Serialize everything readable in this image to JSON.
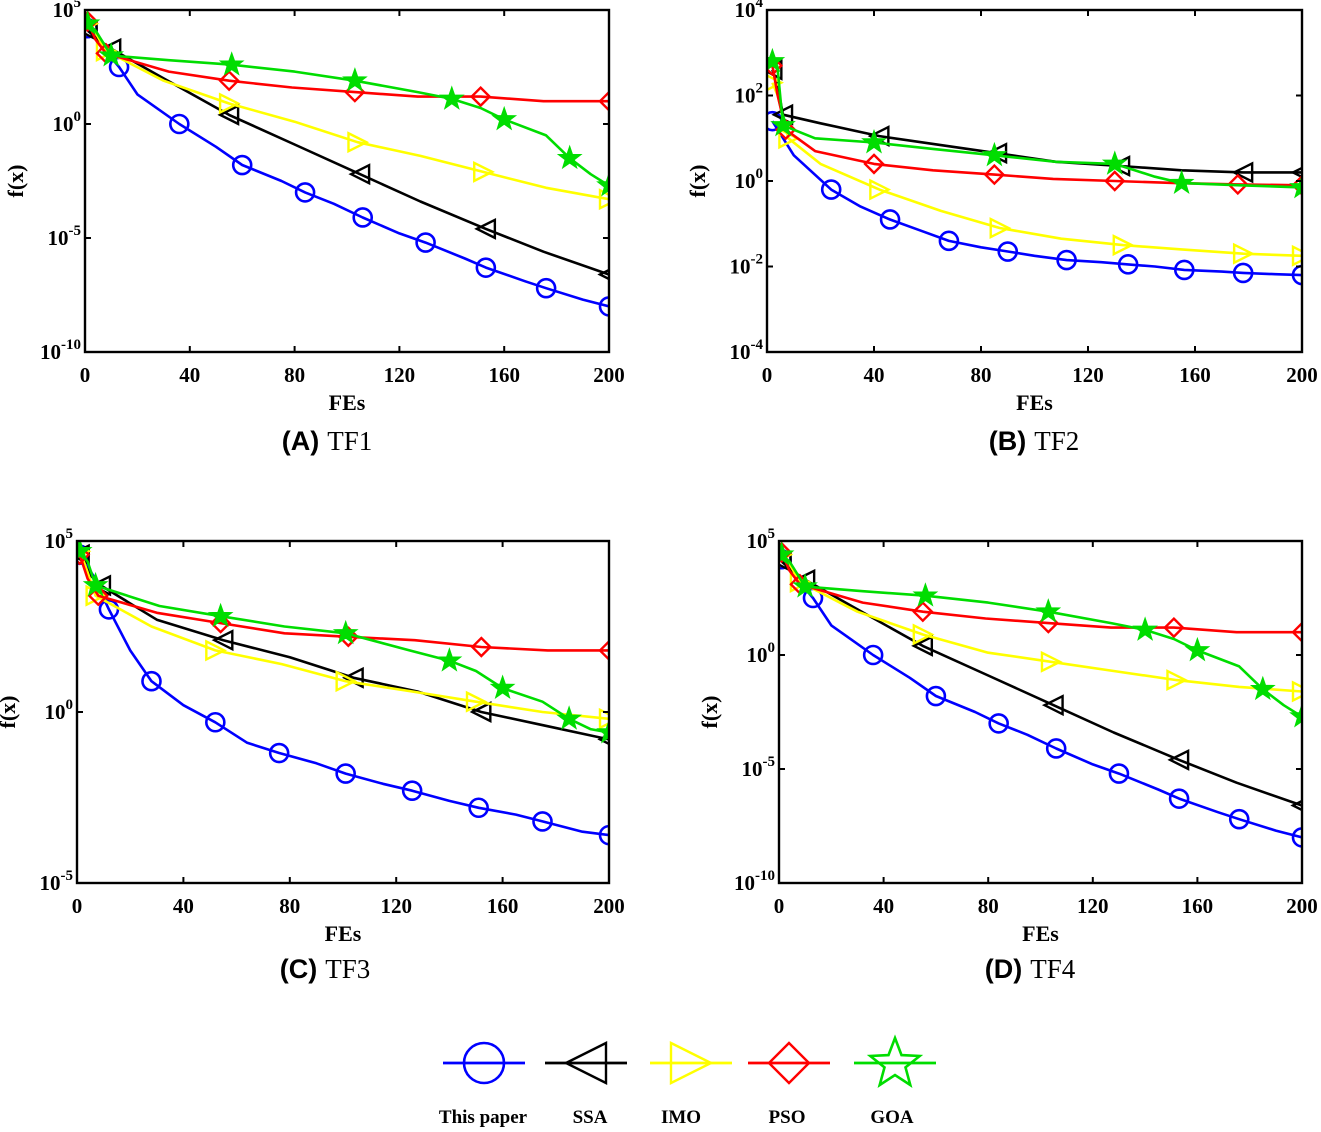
{
  "legend": {
    "entries": [
      {
        "label": "This paper",
        "color": "#0000ff",
        "marker": "circle-icon"
      },
      {
        "label": "SSA",
        "color": "#000000",
        "marker": "triangle-left-icon"
      },
      {
        "label": "IMO",
        "color": "#ffff00",
        "marker": "triangle-right-icon"
      },
      {
        "label": "PSO",
        "color": "#ff0000",
        "marker": "diamond-icon"
      },
      {
        "label": "GOA",
        "color": "#00dd00",
        "marker": "star-icon"
      }
    ]
  },
  "chart_data": [
    {
      "type": "line",
      "panel": "A",
      "title": "TF1",
      "xlabel": "FEs",
      "ylabel": "f(x)",
      "xlim": [
        0,
        200
      ],
      "ylim": [
        -10,
        5
      ],
      "yscale": "log10",
      "xticks": [
        "0",
        "40",
        "80",
        "120",
        "160",
        "200"
      ],
      "yticks": [
        {
          "base": "10",
          "exp": "5"
        },
        {
          "base": "10",
          "exp": "0"
        },
        {
          "base": "10",
          "exp": "-5"
        },
        {
          "base": "10",
          "exp": "-10"
        }
      ],
      "series": [
        {
          "name": "This paper",
          "x": [
            1,
            5,
            13,
            20,
            36,
            50,
            60,
            75,
            84,
            95,
            106,
            120,
            130,
            145,
            153,
            168,
            176,
            190,
            200
          ],
          "log10_y": [
            4.2,
            3.6,
            2.5,
            1.3,
            0.0,
            -1.0,
            -1.8,
            -2.5,
            -3.0,
            -3.5,
            -4.1,
            -4.8,
            -5.2,
            -5.9,
            -6.3,
            -6.9,
            -7.2,
            -7.7,
            -8.0
          ]
        },
        {
          "name": "SSA",
          "x": [
            1,
            5,
            10,
            30,
            55,
            80,
            105,
            128,
            153,
            175,
            200
          ],
          "log10_y": [
            4.1,
            3.7,
            3.3,
            2.0,
            0.4,
            -0.9,
            -2.2,
            -3.4,
            -4.6,
            -5.6,
            -6.6
          ]
        },
        {
          "name": "IMO",
          "x": [
            1,
            3,
            8,
            30,
            55,
            80,
            104,
            128,
            152,
            176,
            200
          ],
          "log10_y": [
            4.4,
            4.2,
            3.2,
            1.9,
            0.9,
            0.1,
            -0.8,
            -1.4,
            -2.1,
            -2.8,
            -3.3
          ]
        },
        {
          "name": "PSO",
          "x": [
            1,
            4,
            8,
            32,
            55,
            79,
            103,
            127,
            151,
            175,
            200
          ],
          "log10_y": [
            4.5,
            3.7,
            3.1,
            2.3,
            1.9,
            1.6,
            1.4,
            1.2,
            1.2,
            1.0,
            1.0
          ]
        },
        {
          "name": "GOA",
          "x": [
            1,
            4,
            10,
            32,
            56,
            80,
            103,
            127,
            140,
            151,
            160,
            176,
            185,
            193,
            200
          ],
          "log10_y": [
            4.4,
            4.1,
            3.0,
            2.8,
            2.6,
            2.3,
            1.9,
            1.4,
            1.1,
            0.7,
            0.2,
            -0.5,
            -1.5,
            -2.2,
            -2.7
          ]
        }
      ]
    },
    {
      "type": "line",
      "panel": "B",
      "title": "TF2",
      "xlabel": "FEs",
      "ylabel": "f(x)",
      "xlim": [
        0,
        200
      ],
      "ylim": [
        -4,
        4
      ],
      "yscale": "log10",
      "xticks": [
        "0",
        "40",
        "80",
        "120",
        "160",
        "200"
      ],
      "yticks": [
        {
          "base": "10",
          "exp": "4"
        },
        {
          "base": "10",
          "exp": "2"
        },
        {
          "base": "10",
          "exp": "0"
        },
        {
          "base": "10",
          "exp": "-2"
        },
        {
          "base": "10",
          "exp": "-4"
        }
      ],
      "series": [
        {
          "name": "This paper",
          "x": [
            2,
            10,
            24,
            35,
            46,
            57,
            68,
            80,
            90,
            100,
            112,
            125,
            135,
            145,
            156,
            170,
            178,
            190,
            200
          ],
          "log10_y": [
            1.4,
            0.6,
            -0.2,
            -0.6,
            -0.9,
            -1.15,
            -1.4,
            -1.55,
            -1.65,
            -1.75,
            -1.85,
            -1.9,
            -1.95,
            -2.0,
            -2.08,
            -2.12,
            -2.15,
            -2.18,
            -2.2
          ]
        },
        {
          "name": "SSA",
          "x": [
            2,
            4,
            6,
            20,
            42,
            64,
            86,
            108,
            132,
            155,
            178,
            200
          ],
          "log10_y": [
            2.6,
            2.2,
            1.55,
            1.35,
            1.05,
            0.85,
            0.65,
            0.45,
            0.35,
            0.25,
            0.2,
            0.2
          ]
        },
        {
          "name": "IMO",
          "x": [
            2,
            4,
            8,
            20,
            42,
            65,
            87,
            110,
            133,
            155,
            178,
            200
          ],
          "log10_y": [
            2.3,
            2.0,
            1.0,
            0.4,
            -0.2,
            -0.7,
            -1.1,
            -1.35,
            -1.5,
            -1.6,
            -1.7,
            -1.75
          ]
        },
        {
          "name": "PSO",
          "x": [
            2,
            4,
            7,
            18,
            40,
            62,
            85,
            107,
            130,
            153,
            176,
            200
          ],
          "log10_y": [
            2.7,
            2.0,
            1.2,
            0.7,
            0.4,
            0.25,
            0.15,
            0.05,
            0.0,
            -0.05,
            -0.08,
            -0.1
          ]
        },
        {
          "name": "GOA",
          "x": [
            2,
            4,
            6,
            18,
            40,
            62,
            85,
            108,
            130,
            145,
            155,
            177,
            200
          ],
          "log10_y": [
            2.8,
            2.6,
            1.3,
            1.0,
            0.9,
            0.75,
            0.6,
            0.45,
            0.4,
            0.1,
            -0.05,
            -0.1,
            -0.15
          ]
        }
      ]
    },
    {
      "type": "line",
      "panel": "C",
      "title": "TF3",
      "xlabel": "FEs",
      "ylabel": "f(x)",
      "xlim": [
        0,
        200
      ],
      "ylim": [
        -5,
        5
      ],
      "yscale": "log10",
      "xticks": [
        "0",
        "40",
        "80",
        "120",
        "160",
        "200"
      ],
      "yticks": [
        {
          "base": "10",
          "exp": "5"
        },
        {
          "base": "10",
          "exp": "0"
        },
        {
          "base": "10",
          "exp": "-5"
        }
      ],
      "series": [
        {
          "name": "This paper",
          "x": [
            1,
            6,
            12,
            20,
            28,
            40,
            52,
            64,
            76,
            90,
            101,
            115,
            126,
            140,
            151,
            165,
            175,
            190,
            200
          ],
          "log10_y": [
            4.6,
            4.0,
            3.0,
            1.8,
            0.9,
            0.2,
            -0.3,
            -0.9,
            -1.2,
            -1.5,
            -1.8,
            -2.1,
            -2.3,
            -2.6,
            -2.8,
            -3.0,
            -3.2,
            -3.5,
            -3.6
          ]
        },
        {
          "name": "SSA",
          "x": [
            1,
            5,
            9,
            30,
            55,
            80,
            104,
            128,
            152,
            176,
            200
          ],
          "log10_y": [
            4.6,
            4.0,
            3.7,
            2.7,
            2.1,
            1.6,
            1.0,
            0.6,
            0.0,
            -0.4,
            -0.8
          ]
        },
        {
          "name": "IMO",
          "x": [
            1,
            3,
            7,
            28,
            52,
            77,
            101,
            126,
            150,
            175,
            200
          ],
          "log10_y": [
            4.7,
            4.3,
            3.4,
            2.5,
            1.8,
            1.4,
            0.9,
            0.6,
            0.3,
            0.0,
            -0.2
          ]
        },
        {
          "name": "PSO",
          "x": [
            1,
            4,
            8,
            30,
            54,
            78,
            102,
            127,
            152,
            177,
            200
          ],
          "log10_y": [
            4.6,
            3.9,
            3.4,
            2.9,
            2.6,
            2.3,
            2.2,
            2.1,
            1.9,
            1.8,
            1.8
          ]
        },
        {
          "name": "GOA",
          "x": [
            1,
            4,
            7,
            31,
            54,
            78,
            101,
            125,
            140,
            150,
            160,
            175,
            185,
            193,
            200
          ],
          "log10_y": [
            4.7,
            4.4,
            3.7,
            3.1,
            2.8,
            2.5,
            2.3,
            1.8,
            1.5,
            1.2,
            0.7,
            0.3,
            -0.2,
            -0.5,
            -0.6
          ]
        }
      ]
    },
    {
      "type": "line",
      "panel": "D",
      "title": "TF4",
      "xlabel": "FEs",
      "ylabel": "f(x)",
      "xlim": [
        0,
        200
      ],
      "ylim": [
        -10,
        5
      ],
      "yscale": "log10",
      "xticks": [
        "0",
        "40",
        "80",
        "120",
        "160",
        "200"
      ],
      "yticks": [
        {
          "base": "10",
          "exp": "5"
        },
        {
          "base": "10",
          "exp": "0"
        },
        {
          "base": "10",
          "exp": "-5"
        },
        {
          "base": "10",
          "exp": "-10"
        }
      ],
      "series": [
        {
          "name": "This paper",
          "x": [
            1,
            5,
            13,
            20,
            36,
            50,
            60,
            75,
            84,
            95,
            106,
            120,
            130,
            145,
            153,
            168,
            176,
            190,
            200
          ],
          "log10_y": [
            4.2,
            3.6,
            2.5,
            1.3,
            0.0,
            -1.0,
            -1.8,
            -2.5,
            -3.0,
            -3.5,
            -4.1,
            -4.8,
            -5.2,
            -5.9,
            -6.3,
            -6.9,
            -7.2,
            -7.7,
            -8.0
          ]
        },
        {
          "name": "SSA",
          "x": [
            1,
            5,
            10,
            30,
            55,
            80,
            105,
            128,
            153,
            175,
            200
          ],
          "log10_y": [
            4.1,
            3.7,
            3.3,
            2.0,
            0.4,
            -0.9,
            -2.2,
            -3.4,
            -4.6,
            -5.6,
            -6.6
          ]
        },
        {
          "name": "IMO",
          "x": [
            1,
            3,
            8,
            30,
            55,
            80,
            104,
            128,
            152,
            176,
            200
          ],
          "log10_y": [
            4.4,
            4.2,
            3.2,
            1.9,
            0.9,
            0.1,
            -0.3,
            -0.7,
            -1.1,
            -1.4,
            -1.6
          ]
        },
        {
          "name": "PSO",
          "x": [
            1,
            4,
            8,
            32,
            55,
            79,
            103,
            127,
            151,
            175,
            200
          ],
          "log10_y": [
            4.5,
            3.7,
            3.1,
            2.3,
            1.9,
            1.6,
            1.4,
            1.2,
            1.2,
            1.0,
            1.0
          ]
        },
        {
          "name": "GOA",
          "x": [
            1,
            4,
            10,
            32,
            56,
            80,
            103,
            127,
            140,
            151,
            160,
            176,
            185,
            193,
            200
          ],
          "log10_y": [
            4.4,
            4.1,
            3.0,
            2.8,
            2.6,
            2.3,
            1.9,
            1.4,
            1.1,
            0.7,
            0.2,
            -0.5,
            -1.5,
            -2.2,
            -2.7
          ]
        }
      ]
    }
  ]
}
